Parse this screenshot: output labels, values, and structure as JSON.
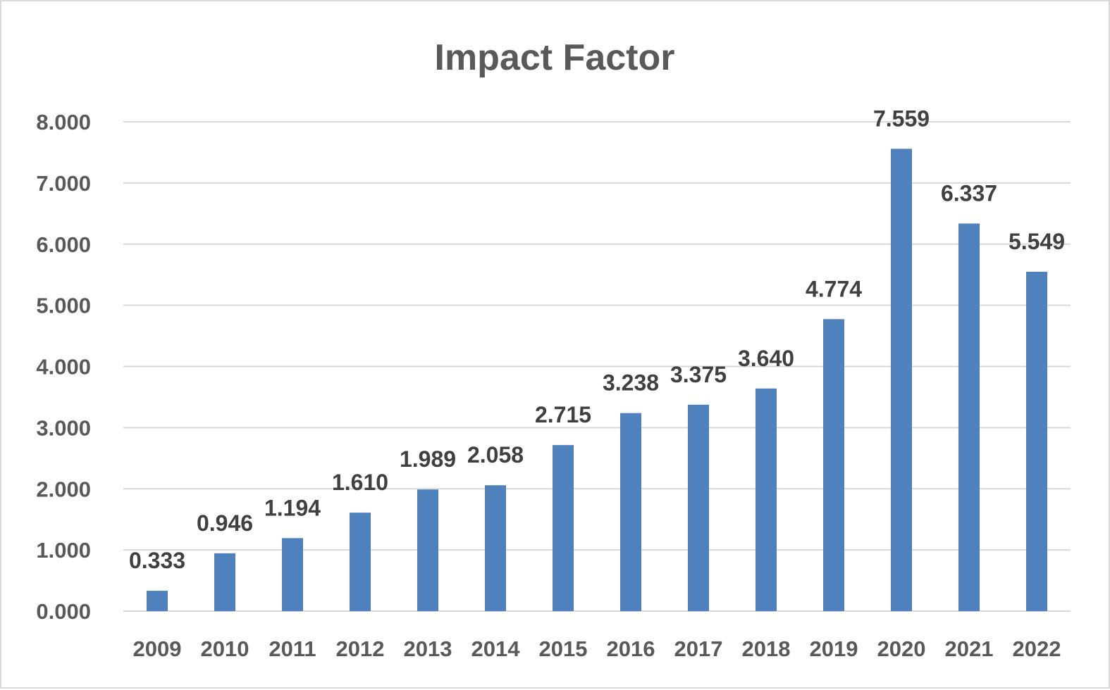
{
  "chart_data": {
    "type": "bar",
    "title": "Impact Factor",
    "xlabel": "",
    "ylabel": "",
    "categories": [
      "2009",
      "2010",
      "2011",
      "2012",
      "2013",
      "2014",
      "2015",
      "2016",
      "2017",
      "2018",
      "2019",
      "2020",
      "2021",
      "2022"
    ],
    "values": [
      0.333,
      0.946,
      1.194,
      1.61,
      1.989,
      2.058,
      2.715,
      3.238,
      3.375,
      3.64,
      4.774,
      7.559,
      6.337,
      5.549
    ],
    "value_labels": [
      "0.333",
      "0.946",
      "1.194",
      "1.610",
      "1.989",
      "2.058",
      "2.715",
      "3.238",
      "3.375",
      "3.640",
      "4.774",
      "7.559",
      "6.337",
      "5.549"
    ],
    "ylim": [
      0,
      8
    ],
    "yticks": [
      0,
      1,
      2,
      3,
      4,
      5,
      6,
      7,
      8
    ],
    "ytick_labels": [
      "0.000",
      "1.000",
      "2.000",
      "3.000",
      "4.000",
      "5.000",
      "6.000",
      "7.000",
      "8.000"
    ],
    "grid": true,
    "legend": "none",
    "bar_color": "#4f81bd"
  }
}
